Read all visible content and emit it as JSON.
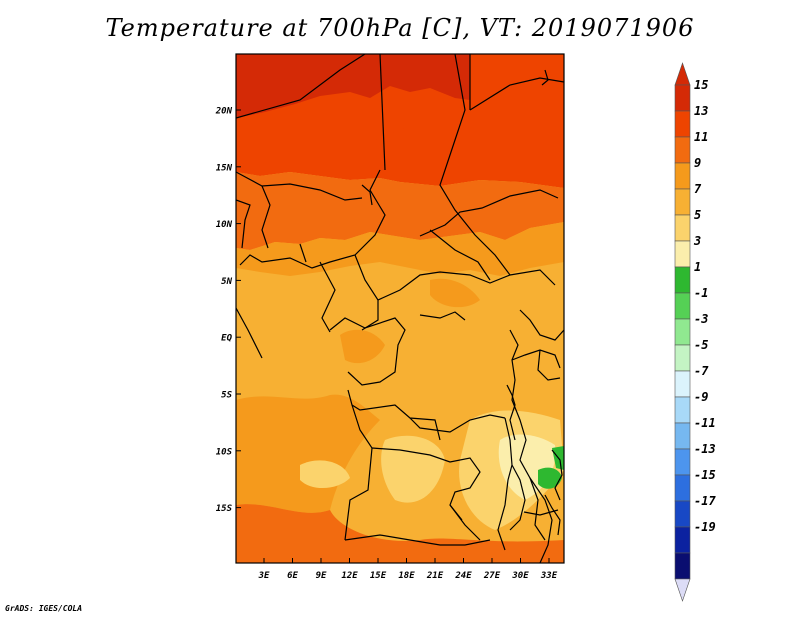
{
  "title": "Temperature at 700hPa [C], VT: 2019071906",
  "credit": "GrADS: IGES/COLA",
  "map": {
    "variable": "Temperature",
    "level": "700hPa",
    "units": "C",
    "valid_time": "2019071906",
    "lat_labels": [
      "20N",
      "15N",
      "10N",
      "5N",
      "EQ",
      "5S",
      "10S",
      "15S"
    ],
    "lon_labels": [
      "3E",
      "6E",
      "9E",
      "12E",
      "15E",
      "18E",
      "21E",
      "24E",
      "27E",
      "30E",
      "33E"
    ]
  },
  "colorbar": {
    "labels": [
      "15",
      "13",
      "11",
      "9",
      "7",
      "5",
      "3",
      "1",
      "-1",
      "-3",
      "-5",
      "-7",
      "-9",
      "-11",
      "-13",
      "-15",
      "-17",
      "-19"
    ],
    "colors": [
      "#d42a06",
      "#ee4400",
      "#f26b10",
      "#f59a1c",
      "#f7b033",
      "#fbd36c",
      "#fbeeac",
      "#2eb830",
      "#55d055",
      "#90e890",
      "#c4f4c4",
      "#dbf3fc",
      "#a8d9f8",
      "#76b8f0",
      "#4d95ee",
      "#2d6fdf",
      "#1848c5",
      "#0b22a0",
      "#0a0e70"
    ],
    "top_color": "#d42a06",
    "bottom_color": "#dcdcf6"
  }
}
